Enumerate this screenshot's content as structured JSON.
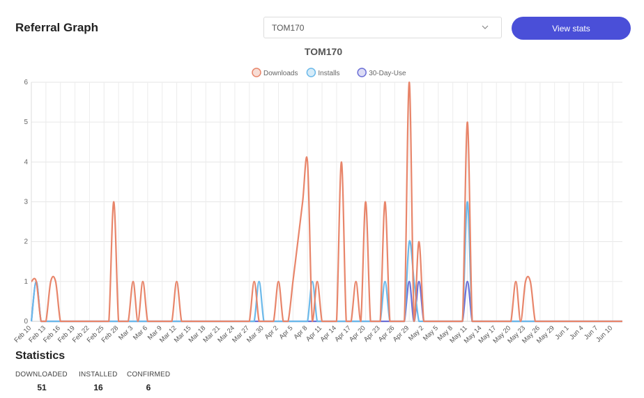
{
  "page": {
    "title": "Referral Graph"
  },
  "selector": {
    "value": "TOM170",
    "icon": "chevron-down-icon"
  },
  "actions": {
    "view_stats_label": "View stats",
    "accent": "#4a4fd8"
  },
  "statistics": {
    "title": "Statistics",
    "items": [
      {
        "label": "DOWNLOADED",
        "value": "51"
      },
      {
        "label": "INSTALLED",
        "value": "16"
      },
      {
        "label": "CONFIRMED",
        "value": "6"
      }
    ]
  },
  "chart_data": {
    "type": "line",
    "title": "TOM170",
    "legend_position": "top-center",
    "grid": true,
    "ylim": [
      0,
      6
    ],
    "yticks": [
      0,
      1,
      2,
      3,
      4,
      5,
      6
    ],
    "x": [
      "Feb 10",
      "Feb 11",
      "Feb 12",
      "Feb 13",
      "Feb 14",
      "Feb 15",
      "Feb 16",
      "Feb 17",
      "Feb 18",
      "Feb 19",
      "Feb 20",
      "Feb 21",
      "Feb 22",
      "Feb 23",
      "Feb 24",
      "Feb 25",
      "Feb 26",
      "Feb 27",
      "Feb 28",
      "Mar 1",
      "Mar 2",
      "Mar 3",
      "Mar 4",
      "Mar 5",
      "Mar 6",
      "Mar 7",
      "Mar 8",
      "Mar 9",
      "Mar 10",
      "Mar 11",
      "Mar 12",
      "Mar 13",
      "Mar 14",
      "Mar 15",
      "Mar 16",
      "Mar 17",
      "Mar 18",
      "Mar 19",
      "Mar 20",
      "Mar 21",
      "Mar 22",
      "Mar 23",
      "Mar 24",
      "Mar 25",
      "Mar 26",
      "Mar 27",
      "Mar 28",
      "Mar 29",
      "Mar 30",
      "Mar 31",
      "Apr 1",
      "Apr 2",
      "Apr 3",
      "Apr 4",
      "Apr 5",
      "Apr 6",
      "Apr 7",
      "Apr 8",
      "Apr 9",
      "Apr 10",
      "Apr 11",
      "Apr 12",
      "Apr 13",
      "Apr 14",
      "Apr 15",
      "Apr 16",
      "Apr 17",
      "Apr 18",
      "Apr 19",
      "Apr 20",
      "Apr 21",
      "Apr 22",
      "Apr 23",
      "Apr 24",
      "Apr 25",
      "Apr 26",
      "Apr 27",
      "Apr 28",
      "Apr 29",
      "Apr 30",
      "May 1",
      "May 2",
      "May 3",
      "May 4",
      "May 5",
      "May 6",
      "May 7",
      "May 8",
      "May 9",
      "May 10",
      "May 11",
      "May 12",
      "May 13",
      "May 14",
      "May 15",
      "May 16",
      "May 17",
      "May 18",
      "May 19",
      "May 20",
      "May 21",
      "May 22",
      "May 23",
      "May 24",
      "May 25",
      "May 26",
      "May 27",
      "May 28",
      "May 29",
      "May 30",
      "May 31",
      "Jun 1",
      "Jun 2",
      "Jun 3",
      "Jun 4",
      "Jun 5",
      "Jun 6",
      "Jun 7",
      "Jun 8",
      "Jun 9",
      "Jun 10",
      "Jun 11",
      "Jun 12"
    ],
    "tick_every": 3,
    "series": [
      {
        "name": "Downloads",
        "color": "#e8856a",
        "fill": "#f7ddd5",
        "values": [
          1,
          1,
          0,
          0,
          1,
          1,
          0,
          0,
          0,
          0,
          0,
          0,
          0,
          0,
          0,
          0,
          0,
          3,
          0,
          0,
          0,
          1,
          0,
          1,
          0,
          0,
          0,
          0,
          0,
          0,
          1,
          0,
          0,
          0,
          0,
          0,
          0,
          0,
          0,
          0,
          0,
          0,
          0,
          0,
          0,
          0,
          1,
          0,
          0,
          0,
          0,
          1,
          0,
          0,
          1,
          2,
          3,
          4,
          0,
          1,
          0,
          0,
          0,
          0,
          4,
          0,
          0,
          1,
          0,
          3,
          0,
          0,
          0,
          3,
          0,
          0,
          0,
          0,
          6,
          0,
          2,
          0,
          0,
          0,
          0,
          0,
          0,
          0,
          0,
          0,
          5,
          0,
          0,
          0,
          0,
          0,
          0,
          0,
          0,
          0,
          1,
          0,
          1,
          1,
          0,
          0,
          0,
          0,
          0,
          0,
          0,
          0,
          0,
          0,
          0,
          0,
          0,
          0,
          0,
          0,
          0,
          0,
          0
        ]
      },
      {
        "name": "Installs",
        "color": "#6bb9ea",
        "fill": "#d6ecf9",
        "values": [
          0,
          1,
          0,
          0,
          0,
          0,
          0,
          0,
          0,
          0,
          0,
          0,
          0,
          0,
          0,
          0,
          0,
          0,
          0,
          0,
          0,
          0,
          0,
          0,
          0,
          0,
          0,
          0,
          0,
          0,
          0,
          0,
          0,
          0,
          0,
          0,
          0,
          0,
          0,
          0,
          0,
          0,
          0,
          0,
          0,
          0,
          0,
          1,
          0,
          0,
          0,
          0,
          0,
          0,
          0,
          0,
          0,
          0,
          1,
          0,
          0,
          0,
          0,
          0,
          0,
          0,
          0,
          0,
          0,
          0,
          0,
          0,
          0,
          1,
          0,
          0,
          0,
          0,
          2,
          1,
          0,
          0,
          0,
          0,
          0,
          0,
          0,
          0,
          0,
          0,
          3,
          0,
          0,
          0,
          0,
          0,
          0,
          0,
          0,
          0,
          0,
          0,
          0,
          0,
          0,
          0,
          0,
          0,
          0,
          0,
          0,
          0,
          0,
          0,
          0,
          0,
          0,
          0,
          0,
          0,
          0,
          0,
          0
        ]
      },
      {
        "name": "30-Day-Use",
        "color": "#6b6fd6",
        "fill": "#dcdcf5",
        "values": [
          0,
          1,
          0,
          0,
          0,
          0,
          0,
          0,
          0,
          0,
          0,
          0,
          0,
          0,
          0,
          0,
          0,
          0,
          0,
          0,
          0,
          0,
          0,
          0,
          0,
          0,
          0,
          0,
          0,
          0,
          0,
          0,
          0,
          0,
          0,
          0,
          0,
          0,
          0,
          0,
          0,
          0,
          0,
          0,
          0,
          0,
          0,
          0,
          0,
          0,
          0,
          0,
          0,
          0,
          0,
          0,
          0,
          0,
          0,
          0,
          0,
          0,
          0,
          0,
          0,
          0,
          0,
          0,
          0,
          0,
          0,
          0,
          0,
          0,
          0,
          0,
          0,
          0,
          1,
          0,
          1,
          0,
          0,
          0,
          0,
          0,
          0,
          0,
          0,
          0,
          1,
          0,
          0,
          0,
          0,
          0,
          0,
          0,
          0,
          0,
          0,
          0,
          0,
          0,
          0,
          0,
          0,
          0,
          0,
          0,
          0,
          0,
          0,
          0,
          0,
          0,
          0,
          0,
          0,
          0,
          0,
          0,
          0
        ]
      }
    ]
  }
}
